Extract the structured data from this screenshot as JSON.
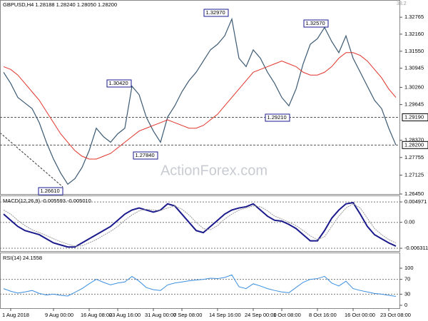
{
  "chart_data": [
    {
      "type": "line",
      "title": "GBPUSD,H4  1.28188 1.28240 1.28050 1.28200",
      "corner_label": "38.2",
      "watermark": "ActionForex.com",
      "categories": [
        null,
        "1 Aug 2018",
        null,
        null,
        null,
        null,
        null,
        "9 Aug 00:00",
        null,
        null,
        null,
        null,
        "16 Aug 08:00",
        null,
        null,
        null,
        "23 Aug 16:00",
        null,
        null,
        null,
        null,
        "31 Aug 00:00",
        null,
        null,
        null,
        "7 Sep 08:00",
        null,
        null,
        null,
        null,
        "14 Sep 16:00",
        null,
        null,
        null,
        null,
        "24 Sep 00:00",
        null,
        null,
        null,
        "1 Oct 08:00",
        null,
        null,
        null,
        null,
        "8 Oct 16:00",
        null,
        null,
        null,
        null,
        "16 Oct 00:00",
        null,
        null,
        null,
        null,
        "23 Oct 08:00",
        null
      ],
      "series": [
        {
          "color": "#3c5a73",
          "values": [
            1.308,
            1.304,
            1.299,
            1.297,
            1.295,
            1.29,
            1.283,
            1.277,
            1.272,
            1.268,
            1.27,
            1.274,
            1.28,
            1.288,
            1.285,
            1.283,
            1.286,
            1.288,
            1.303,
            1.3,
            1.292,
            1.287,
            1.283,
            1.292,
            1.296,
            1.301,
            1.305,
            1.308,
            1.312,
            1.316,
            1.318,
            1.321,
            1.327,
            1.313,
            1.31,
            1.316,
            1.313,
            1.308,
            1.304,
            1.299,
            1.296,
            1.302,
            1.311,
            1.318,
            1.32,
            1.324,
            1.319,
            1.315,
            1.321,
            1.313,
            1.308,
            1.303,
            1.298,
            1.295,
            1.288,
            1.282
          ]
        },
        {
          "color": "#e0342a",
          "values": [
            1.31,
            1.309,
            1.307,
            1.304,
            1.301,
            1.298,
            1.294,
            1.29,
            1.286,
            1.283,
            1.28,
            1.278,
            1.277,
            1.277,
            1.278,
            1.279,
            1.281,
            1.283,
            1.285,
            1.287,
            1.288,
            1.289,
            1.29,
            1.291,
            1.29,
            1.289,
            1.288,
            1.288,
            1.289,
            1.291,
            1.293,
            1.296,
            1.299,
            1.302,
            1.305,
            1.308,
            1.309,
            1.31,
            1.311,
            1.312,
            1.311,
            1.31,
            1.308,
            1.307,
            1.307,
            1.308,
            1.31,
            1.313,
            1.315,
            1.315,
            1.314,
            1.312,
            1.309,
            1.306,
            1.302,
            1.299
          ]
        }
      ],
      "ylim": [
        1.2645,
        1.3338
      ],
      "yticks": [
        {
          "value": 1.32765,
          "label": "1.32765"
        },
        {
          "value": 1.3216,
          "label": "1.32160"
        },
        {
          "value": 1.3155,
          "label": "1.31550"
        },
        {
          "value": 1.30945,
          "label": "1.30945"
        },
        {
          "value": 1.3026,
          "label": "1.30260"
        },
        {
          "value": 1.29645,
          "label": "1.29645"
        },
        {
          "value": 1.2837,
          "label": "1.28370"
        },
        {
          "value": 1.27755,
          "label": "1.27755"
        },
        {
          "value": 1.27125,
          "label": "1.27125"
        },
        {
          "value": 1.2645,
          "label": "1.26450"
        }
      ],
      "hlines": [
        {
          "value": 1.2919,
          "label": "1.29190"
        },
        {
          "value": 1.282,
          "label": "1.28200"
        }
      ],
      "annotations": [
        "1.32970",
        "1.32570",
        "1.30420",
        "1.29210",
        "1.27840",
        "1.26610"
      ]
    },
    {
      "type": "line",
      "title": "MACD(12,26,9) -0.005593 -0.005010",
      "series": [
        {
          "color": "#1a1a8c",
          "values": [
            0.002,
            0.0005,
            -0.001,
            -0.002,
            -0.0025,
            -0.003,
            -0.004,
            -0.005,
            -0.0055,
            -0.006,
            -0.006,
            -0.005,
            -0.004,
            -0.003,
            -0.002,
            -0.001,
            0.0005,
            0.002,
            0.003,
            0.0035,
            0.003,
            0.0025,
            0.003,
            0.0045,
            0.004,
            0.002,
            0.0,
            -0.002,
            -0.0025,
            -0.001,
            0.0005,
            0.002,
            0.003,
            0.0035,
            0.0038,
            0.0045,
            0.003,
            0.0015,
            0.0005,
            0.0003,
            -0.0005,
            -0.0015,
            -0.003,
            -0.0045,
            -0.0045,
            -0.002,
            0.001,
            0.003,
            0.0045,
            0.0048,
            0.002,
            -0.001,
            -0.003,
            -0.004,
            -0.005,
            -0.0058
          ]
        },
        {
          "color": "#9a9a9a",
          "values": [
            0.003,
            0.002,
            0.0005,
            -0.0008,
            -0.0018,
            -0.0025,
            -0.0032,
            -0.004,
            -0.0047,
            -0.0053,
            -0.0058,
            -0.0057,
            -0.005,
            -0.0042,
            -0.0032,
            -0.0022,
            -0.001,
            0.0005,
            0.0018,
            0.0028,
            0.0032,
            0.003,
            0.0029,
            0.0035,
            0.004,
            0.0032,
            0.0018,
            0.0,
            -0.0015,
            -0.0018,
            -0.0008,
            0.0008,
            0.002,
            0.003,
            0.0035,
            0.004,
            0.0038,
            0.0028,
            0.0015,
            0.0008,
            0.0,
            -0.0008,
            -0.002,
            -0.0033,
            -0.0042,
            -0.0035,
            -0.001,
            0.0015,
            0.0035,
            0.0045,
            0.0035,
            0.001,
            -0.0015,
            -0.003,
            -0.0042,
            -0.005
          ]
        }
      ],
      "ylim": [
        -0.007,
        0.0062
      ],
      "yticks": [
        0.004971,
        {
          "value": 0,
          "label": "0.00"
        },
        -0.006311
      ]
    },
    {
      "type": "line",
      "title": "RSI(14) 24.1558",
      "series": [
        {
          "color": "#3d8fe0",
          "values": [
            45,
            38,
            33,
            36,
            40,
            32,
            28,
            30,
            27,
            25,
            35,
            45,
            58,
            70,
            62,
            55,
            60,
            63,
            78,
            65,
            48,
            42,
            40,
            55,
            60,
            63,
            66,
            68,
            70,
            73,
            72,
            75,
            82,
            50,
            45,
            58,
            52,
            45,
            40,
            36,
            34,
            48,
            62,
            70,
            72,
            78,
            60,
            52,
            65,
            45,
            40,
            36,
            32,
            30,
            27,
            24
          ]
        }
      ],
      "ylim": [
        0,
        100
      ],
      "yticks": [
        0,
        30,
        70,
        100
      ]
    }
  ]
}
